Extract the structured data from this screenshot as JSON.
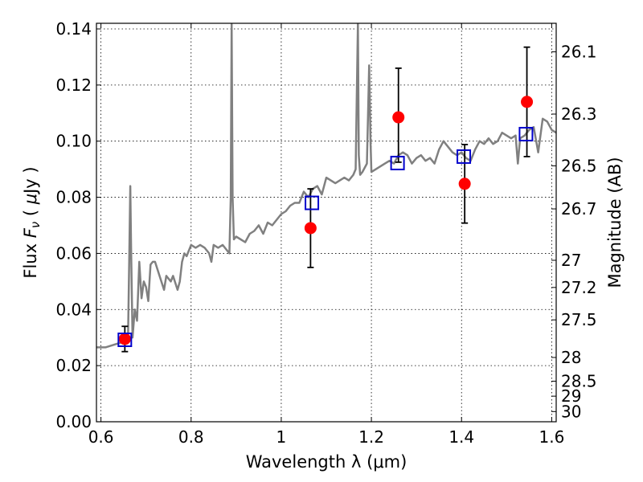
{
  "chart_data": {
    "type": "line",
    "xlabel": "Wavelength  λ (μm)",
    "ylabel_parts": [
      "Flux  ",
      "F",
      "ν",
      "  ( ",
      "μ",
      "Jy )"
    ],
    "y2label": "Magnitude (AB)",
    "xlim": [
      0.59,
      1.61
    ],
    "ylim": [
      0.0,
      0.142
    ],
    "grid": true,
    "x_ticks": [
      {
        "value": 0.6,
        "label": "0.6"
      },
      {
        "value": 0.8,
        "label": "0.8"
      },
      {
        "value": 1.0,
        "label": "1"
      },
      {
        "value": 1.2,
        "label": "1.2"
      },
      {
        "value": 1.4,
        "label": "1.4"
      },
      {
        "value": 1.6,
        "label": "1.6"
      }
    ],
    "y_ticks": [
      {
        "value": 0.0,
        "label": "0.00"
      },
      {
        "value": 0.02,
        "label": "0.02"
      },
      {
        "value": 0.04,
        "label": "0.04"
      },
      {
        "value": 0.06,
        "label": "0.06"
      },
      {
        "value": 0.08,
        "label": "0.08"
      },
      {
        "value": 0.1,
        "label": "0.10"
      },
      {
        "value": 0.12,
        "label": "0.12"
      },
      {
        "value": 0.14,
        "label": "0.14"
      }
    ],
    "y2_ticks": [
      {
        "mag": 26.1,
        "label": "26.1"
      },
      {
        "mag": 26.3,
        "label": "26.3"
      },
      {
        "mag": 26.5,
        "label": "26.5"
      },
      {
        "mag": 26.7,
        "label": "26.7"
      },
      {
        "mag": 27.0,
        "label": "27"
      },
      {
        "mag": 27.2,
        "label": "27.2"
      },
      {
        "mag": 27.5,
        "label": "27.5"
      },
      {
        "mag": 28.0,
        "label": "28"
      },
      {
        "mag": 28.5,
        "label": "28.5"
      },
      {
        "mag": 29.0,
        "label": "29"
      },
      {
        "mag": 30.0,
        "label": "30"
      }
    ],
    "series": [
      {
        "type": "line",
        "color": "#808080",
        "x": [
          0.59,
          0.6,
          0.61,
          0.62,
          0.63,
          0.64,
          0.65,
          0.655,
          0.66,
          0.663,
          0.665,
          0.667,
          0.67,
          0.675,
          0.68,
          0.685,
          0.69,
          0.695,
          0.7,
          0.705,
          0.71,
          0.715,
          0.72,
          0.73,
          0.74,
          0.745,
          0.75,
          0.755,
          0.76,
          0.77,
          0.775,
          0.78,
          0.785,
          0.79,
          0.8,
          0.81,
          0.82,
          0.83,
          0.84,
          0.845,
          0.85,
          0.86,
          0.87,
          0.88,
          0.885,
          0.888,
          0.89,
          0.892,
          0.895,
          0.9,
          0.91,
          0.92,
          0.93,
          0.94,
          0.95,
          0.96,
          0.97,
          0.98,
          0.99,
          1.0,
          1.01,
          1.02,
          1.03,
          1.04,
          1.05,
          1.06,
          1.07,
          1.08,
          1.09,
          1.1,
          1.11,
          1.12,
          1.13,
          1.14,
          1.15,
          1.16,
          1.165,
          1.17,
          1.172,
          1.175,
          1.18,
          1.19,
          1.195,
          1.198,
          1.2,
          1.21,
          1.22,
          1.23,
          1.24,
          1.25,
          1.26,
          1.27,
          1.28,
          1.29,
          1.3,
          1.31,
          1.32,
          1.33,
          1.34,
          1.35,
          1.36,
          1.37,
          1.38,
          1.39,
          1.4,
          1.41,
          1.42,
          1.43,
          1.44,
          1.45,
          1.46,
          1.47,
          1.48,
          1.49,
          1.5,
          1.51,
          1.52,
          1.525,
          1.53,
          1.54,
          1.55,
          1.56,
          1.57,
          1.58,
          1.59,
          1.6,
          1.61
        ],
        "y": [
          0.0265,
          0.0265,
          0.0265,
          0.027,
          0.0275,
          0.028,
          0.0285,
          0.029,
          0.03,
          0.06,
          0.084,
          0.06,
          0.03,
          0.04,
          0.036,
          0.057,
          0.044,
          0.05,
          0.048,
          0.043,
          0.056,
          0.057,
          0.057,
          0.052,
          0.047,
          0.052,
          0.051,
          0.05,
          0.052,
          0.047,
          0.05,
          0.057,
          0.06,
          0.059,
          0.063,
          0.062,
          0.063,
          0.062,
          0.06,
          0.057,
          0.063,
          0.062,
          0.063,
          0.061,
          0.06,
          0.08,
          0.142,
          0.08,
          0.065,
          0.066,
          0.065,
          0.064,
          0.067,
          0.068,
          0.07,
          0.067,
          0.071,
          0.07,
          0.072,
          0.074,
          0.075,
          0.077,
          0.078,
          0.078,
          0.082,
          0.08,
          0.083,
          0.084,
          0.081,
          0.087,
          0.086,
          0.085,
          0.086,
          0.087,
          0.086,
          0.088,
          0.09,
          0.142,
          0.095,
          0.088,
          0.089,
          0.092,
          0.127,
          0.1,
          0.089,
          0.09,
          0.091,
          0.092,
          0.093,
          0.092,
          0.095,
          0.096,
          0.095,
          0.092,
          0.094,
          0.095,
          0.093,
          0.094,
          0.092,
          0.097,
          0.1,
          0.098,
          0.096,
          0.095,
          0.096,
          0.094,
          0.093,
          0.097,
          0.1,
          0.099,
          0.101,
          0.099,
          0.1,
          0.103,
          0.102,
          0.101,
          0.102,
          0.092,
          0.101,
          0.102,
          0.104,
          0.105,
          0.096,
          0.108,
          0.107,
          0.104,
          0.103
        ]
      },
      {
        "type": "scatter",
        "marker": "circle",
        "color": "#ff0000",
        "x": [
          0.653,
          1.065,
          1.26,
          1.407,
          1.545
        ],
        "y": [
          0.0295,
          0.069,
          0.1085,
          0.0848,
          0.114
        ],
        "yerr_low": [
          0.0045,
          0.014,
          0.016,
          0.014,
          0.0195
        ],
        "yerr_high": [
          0.0045,
          0.014,
          0.0175,
          0.014,
          0.0195
        ]
      },
      {
        "type": "scatter",
        "marker": "open-square",
        "color": "#0000cc",
        "x": [
          0.653,
          1.068,
          1.258,
          1.405,
          1.543
        ],
        "y": [
          0.0292,
          0.078,
          0.0922,
          0.0945,
          0.1025
        ]
      }
    ]
  }
}
